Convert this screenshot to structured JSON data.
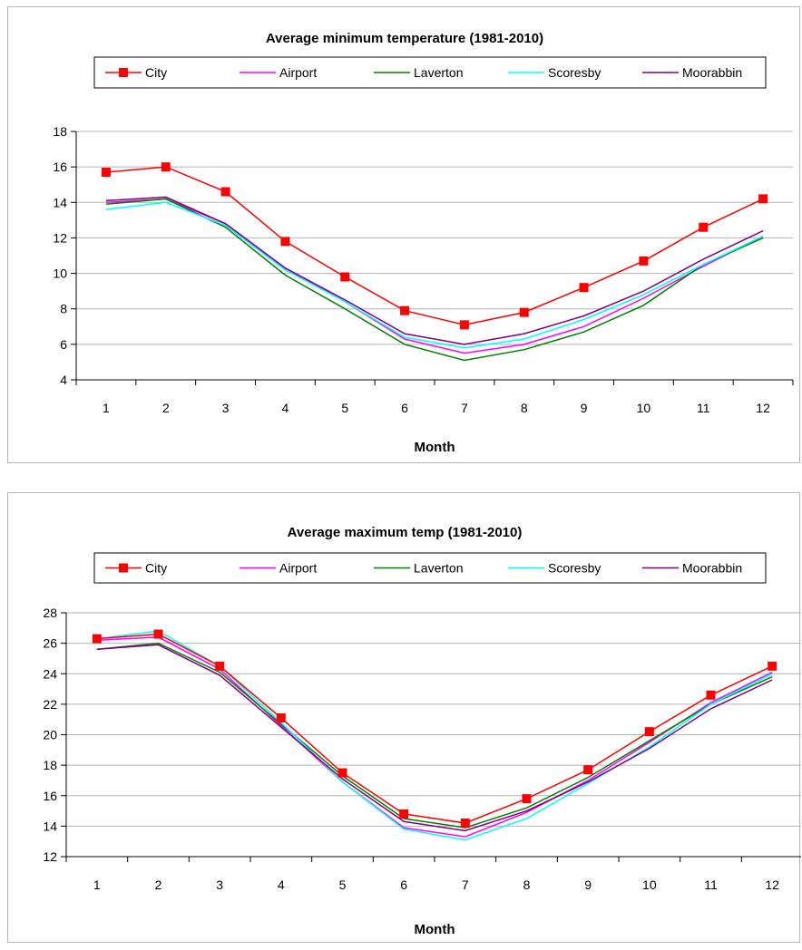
{
  "chart_data": [
    {
      "type": "line",
      "title": "Average minimum temperature (1981-2010)",
      "xlabel": "Month",
      "ylabel": "",
      "x": [
        1,
        2,
        3,
        4,
        5,
        6,
        7,
        8,
        9,
        10,
        11,
        12
      ],
      "ylim": [
        4,
        18
      ],
      "yticks": [
        4,
        6,
        8,
        10,
        12,
        14,
        16,
        18
      ],
      "grid": true,
      "legend_position": "top",
      "series": [
        {
          "name": "City",
          "color": "#ff0000",
          "marker": "square",
          "values": [
            15.7,
            16.0,
            14.6,
            11.8,
            9.8,
            7.9,
            7.1,
            7.8,
            9.2,
            10.7,
            12.6,
            14.2
          ]
        },
        {
          "name": "Airport",
          "color": "#ff00ff",
          "marker": "none",
          "values": [
            14.0,
            14.2,
            12.8,
            10.3,
            8.4,
            6.3,
            5.5,
            6.0,
            7.0,
            8.6,
            10.4,
            12.1
          ]
        },
        {
          "name": "Laverton",
          "color": "#008000",
          "marker": "none",
          "values": [
            13.9,
            14.2,
            12.6,
            9.9,
            8.0,
            6.0,
            5.1,
            5.7,
            6.7,
            8.2,
            10.5,
            12.0
          ]
        },
        {
          "name": "Scoresby",
          "color": "#00ffff",
          "marker": "none",
          "values": [
            13.6,
            14.0,
            12.7,
            10.2,
            8.4,
            6.4,
            5.8,
            6.3,
            7.4,
            8.8,
            10.5,
            12.1
          ]
        },
        {
          "name": "Moorabbin",
          "color": "#800080",
          "marker": "none",
          "values": [
            14.1,
            14.3,
            12.8,
            10.3,
            8.5,
            6.6,
            6.0,
            6.6,
            7.6,
            9.0,
            10.8,
            12.4
          ]
        }
      ]
    },
    {
      "type": "line",
      "title": "Average maximum temp (1981-2010)",
      "xlabel": "Month",
      "ylabel": "",
      "x": [
        1,
        2,
        3,
        4,
        5,
        6,
        7,
        8,
        9,
        10,
        11,
        12
      ],
      "ylim": [
        12,
        28
      ],
      "yticks": [
        12,
        14,
        16,
        18,
        20,
        22,
        24,
        26,
        28
      ],
      "grid": true,
      "legend_position": "top",
      "series": [
        {
          "name": "City",
          "color": "#ff0000",
          "marker": "square",
          "values": [
            26.3,
            26.6,
            24.5,
            21.1,
            17.5,
            14.8,
            14.2,
            15.8,
            17.7,
            20.2,
            22.6,
            24.5
          ]
        },
        {
          "name": "Airport",
          "color": "#ff00ff",
          "marker": "none",
          "values": [
            26.2,
            26.4,
            24.3,
            20.6,
            16.9,
            13.9,
            13.3,
            14.9,
            17.0,
            19.5,
            22.1,
            24.1
          ]
        },
        {
          "name": "Laverton",
          "color": "#008000",
          "marker": "none",
          "values": [
            25.6,
            26.0,
            24.1,
            20.7,
            17.3,
            14.5,
            13.9,
            15.2,
            17.2,
            19.6,
            22.0,
            23.8
          ]
        },
        {
          "name": "Scoresby",
          "color": "#00ffff",
          "marker": "none",
          "values": [
            26.3,
            26.8,
            24.5,
            20.8,
            16.9,
            13.8,
            13.1,
            14.5,
            16.8,
            19.2,
            22.0,
            24.0
          ]
        },
        {
          "name": "Moorabbin",
          "color": "#800080",
          "marker": "none",
          "values": [
            25.6,
            25.9,
            23.9,
            20.5,
            17.1,
            14.3,
            13.7,
            15.0,
            16.9,
            19.1,
            21.7,
            23.6
          ]
        }
      ]
    }
  ]
}
